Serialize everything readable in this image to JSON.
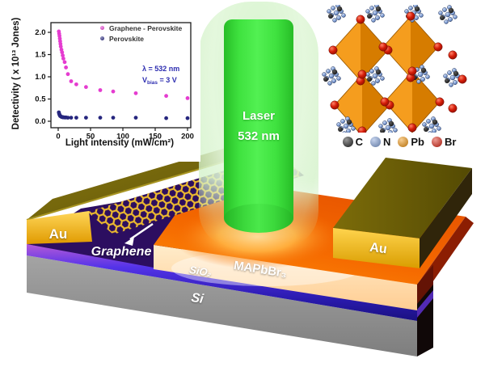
{
  "chart_data": {
    "type": "scatter",
    "xlabel": "Light intensity (mW/cm²)",
    "ylabel": "Detectivity ( x 10¹³ Jones)",
    "xticks": [
      0,
      50,
      100,
      150,
      200
    ],
    "yticks": [
      0,
      0.5,
      1,
      1.5,
      2
    ],
    "xlim": [
      0,
      210
    ],
    "ylim": [
      0,
      2.2
    ],
    "grid": false,
    "legend_position": "top-inside",
    "annotation": {
      "lambda": "λ = 532 nm",
      "vbias_main": "V",
      "vbias_sub": "bias",
      "vbias_value": " = 3 V"
    },
    "series": [
      {
        "name": "Graphene - Perovskite",
        "color": "#e53cd0",
        "marker": "circle",
        "points": [
          [
            1,
            2.02
          ],
          [
            1.5,
            1.97
          ],
          [
            2,
            1.92
          ],
          [
            2.5,
            1.86
          ],
          [
            3,
            1.8
          ],
          [
            3.5,
            1.74
          ],
          [
            4,
            1.68
          ],
          [
            5,
            1.61
          ],
          [
            6,
            1.55
          ],
          [
            7,
            1.48
          ],
          [
            8,
            1.41
          ],
          [
            10,
            1.33
          ],
          [
            12,
            1.21
          ],
          [
            15,
            1.06
          ],
          [
            20,
            0.9
          ],
          [
            28,
            0.83
          ],
          [
            43,
            0.77
          ],
          [
            65,
            0.7
          ],
          [
            85,
            0.67
          ],
          [
            120,
            0.63
          ],
          [
            167,
            0.57
          ],
          [
            200,
            0.52
          ]
        ]
      },
      {
        "name": "Perovskite",
        "color": "#26267e",
        "marker": "circle",
        "points": [
          [
            1,
            0.2
          ],
          [
            1.5,
            0.17
          ],
          [
            2,
            0.15
          ],
          [
            2.5,
            0.13
          ],
          [
            3,
            0.12
          ],
          [
            4,
            0.11
          ],
          [
            5,
            0.1
          ],
          [
            6,
            0.095
          ],
          [
            7,
            0.09
          ],
          [
            8,
            0.09
          ],
          [
            10,
            0.085
          ],
          [
            12,
            0.085
          ],
          [
            15,
            0.08
          ],
          [
            20,
            0.08
          ],
          [
            28,
            0.08
          ],
          [
            43,
            0.08
          ],
          [
            65,
            0.08
          ],
          [
            85,
            0.08
          ],
          [
            120,
            0.08
          ],
          [
            167,
            0.07
          ],
          [
            200,
            0.07
          ]
        ]
      }
    ]
  },
  "laser": {
    "label_line1": "Laser",
    "label_line2": "532 nm",
    "beam_color": "#3fe23f",
    "glow_color": "#e2f5dc"
  },
  "crystal": {
    "legend": [
      {
        "element": "C",
        "color": "#1b1b1b"
      },
      {
        "element": "N",
        "color": "#7f9ed6"
      },
      {
        "element": "Pb",
        "color": "#f0930c"
      },
      {
        "element": "Br",
        "color": "#d9200f"
      }
    ]
  },
  "device": {
    "labels": {
      "electrode_left": "Au",
      "electrode_right": "Au",
      "graphene": "Graphene",
      "perovskite": "MAPbBr₃",
      "oxide": "SiO₂",
      "substrate": "Si"
    },
    "colors": {
      "gold": "#f0b400",
      "graphene_bg": "#2d0e5e",
      "perovskite_top": "#f56a00",
      "perovskite_front": "#ffd9a8",
      "oxide": "#3b25cc",
      "substrate": "#8f8f8f"
    }
  }
}
